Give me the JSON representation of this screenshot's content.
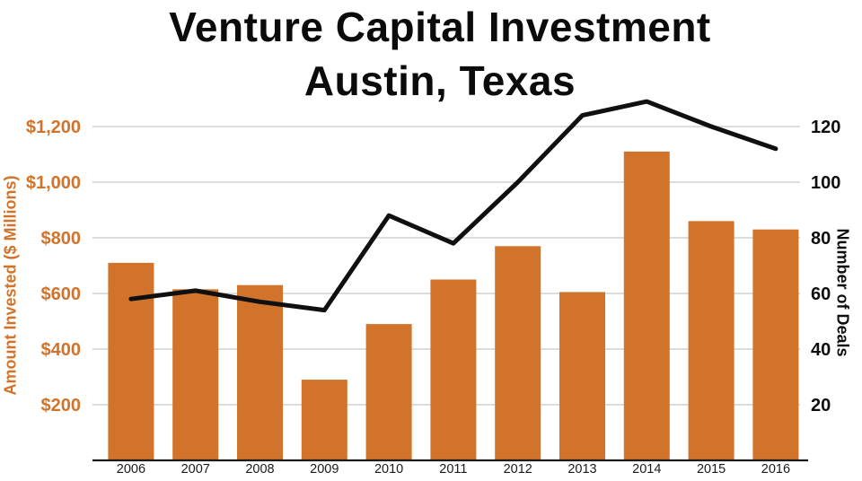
{
  "chart_data": {
    "type": "bar",
    "subtype": "bar-line-combo",
    "title_line1": "Venture Capital Investment",
    "title_line2": "Austin, Texas",
    "categories": [
      "2006",
      "2007",
      "2008",
      "2009",
      "2010",
      "2011",
      "2012",
      "2013",
      "2014",
      "2015",
      "2016"
    ],
    "series": [
      {
        "name": "Amount Invested ($ Millions)",
        "type": "bar",
        "axis": "left",
        "color": "#D2732C",
        "values": [
          710,
          615,
          630,
          290,
          490,
          650,
          770,
          605,
          1110,
          860,
          830
        ]
      },
      {
        "name": "Number of Deals",
        "type": "line",
        "axis": "right",
        "color": "#101010",
        "values": [
          58,
          61,
          57,
          54,
          88,
          78,
          100,
          124,
          129,
          120,
          112
        ]
      }
    ],
    "y_left": {
      "label": "Amount Invested ($ Millions)",
      "color": "#D2732C",
      "ticks": [
        "$200",
        "$400",
        "$600",
        "$800",
        "$1,000",
        "$1,200"
      ],
      "tick_values": [
        200,
        400,
        600,
        800,
        1000,
        1200
      ],
      "range": [
        0,
        1300
      ]
    },
    "y_right": {
      "label": "Number of Deals",
      "color": "#0E0E0E",
      "ticks": [
        "20",
        "40",
        "60",
        "80",
        "100",
        "120"
      ],
      "tick_values": [
        20,
        40,
        60,
        80,
        100,
        120
      ],
      "range": [
        0,
        130
      ]
    },
    "grid": true,
    "legend": "none",
    "background": "#FFFFFF",
    "gridline_color": "#C8C8C8",
    "axis_line_color": "#1A1A1A"
  }
}
